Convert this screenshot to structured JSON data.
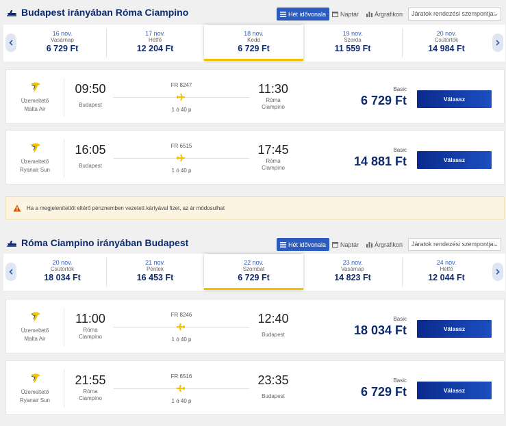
{
  "colors": {
    "brand_navy": "#0c2a6d",
    "accent_blue": "#2d5cc1",
    "selected_underline": "#f2c200",
    "select_button": "#1c4fc0",
    "warning_bg": "#fdf3e1",
    "warning_icon": "#d35400"
  },
  "outbound": {
    "title": "Budapest irányában Róma Ciampino",
    "views": {
      "week": "Hét idővonala",
      "calendar": "Naptár",
      "chart": "Árgrafikon"
    },
    "sort_placeholder": "Járatok rendezési szempontja:",
    "dates": [
      {
        "date": "16 nov.",
        "day": "Vasárnap",
        "price": "6 729 Ft"
      },
      {
        "date": "17 nov.",
        "day": "Hétfő",
        "price": "12 204 Ft"
      },
      {
        "date": "18 nov.",
        "day": "Kedd",
        "price": "6 729 Ft",
        "selected": true
      },
      {
        "date": "19 nov.",
        "day": "Szerda",
        "price": "11 559 Ft"
      },
      {
        "date": "20 nov.",
        "day": "Csütörtök",
        "price": "14 984 Ft"
      }
    ],
    "flights": [
      {
        "operator_label": "Üzemeltető",
        "operator": "Malta Air",
        "dep_time": "09:50",
        "dep_city": "Budapest",
        "flight_no": "FR 8247",
        "duration": "1 ó 40 p",
        "arr_time": "11:30",
        "arr_city_1": "Róma",
        "arr_city_2": "Ciampino",
        "fare": "Basic",
        "price": "6 729 Ft",
        "button": "Válassz"
      },
      {
        "operator_label": "Üzemeltető",
        "operator": "Ryanair Sun",
        "dep_time": "16:05",
        "dep_city": "Budapest",
        "flight_no": "FR 6515",
        "duration": "1 ó 40 p",
        "arr_time": "17:45",
        "arr_city_1": "Róma",
        "arr_city_2": "Ciampino",
        "fare": "Basic",
        "price": "14 881 Ft",
        "button": "Válassz"
      }
    ]
  },
  "notice": {
    "icon": "warning-icon",
    "text": "Ha a megjelenítettől eltérő pénznemben vezetett kártyával fizet, az ár módosulhat"
  },
  "inbound": {
    "title": "Róma Ciampino irányában Budapest",
    "views": {
      "week": "Hét idővonala",
      "calendar": "Naptár",
      "chart": "Árgrafikon"
    },
    "sort_placeholder": "Járatok rendezési szempontja:",
    "dates": [
      {
        "date": "20 nov.",
        "day": "Csütörtök",
        "price": "18 034 Ft"
      },
      {
        "date": "21 nov.",
        "day": "Péntek",
        "price": "16 453 Ft"
      },
      {
        "date": "22 nov.",
        "day": "Szombat",
        "price": "6 729 Ft",
        "selected": true
      },
      {
        "date": "23 nov.",
        "day": "Vasárnap",
        "price": "14 823 Ft"
      },
      {
        "date": "24 nov.",
        "day": "Hétfő",
        "price": "12 044 Ft"
      }
    ],
    "flights": [
      {
        "operator_label": "Üzemeltető",
        "operator": "Malta Air",
        "dep_time": "11:00",
        "dep_city_1": "Róma",
        "dep_city_2": "Ciampino",
        "flight_no": "FR 8246",
        "duration": "1 ó 40 p",
        "arr_time": "12:40",
        "arr_city": "Budapest",
        "fare": "Basic",
        "price": "18 034 Ft",
        "button": "Válassz"
      },
      {
        "operator_label": "Üzemeltető",
        "operator": "Ryanair Sun",
        "dep_time": "21:55",
        "dep_city_1": "Róma",
        "dep_city_2": "Ciampino",
        "flight_no": "FR 6516",
        "duration": "1 ó 40 p",
        "arr_time": "23:35",
        "arr_city": "Budapest",
        "fare": "Basic",
        "price": "6 729 Ft",
        "button": "Válassz"
      }
    ]
  }
}
